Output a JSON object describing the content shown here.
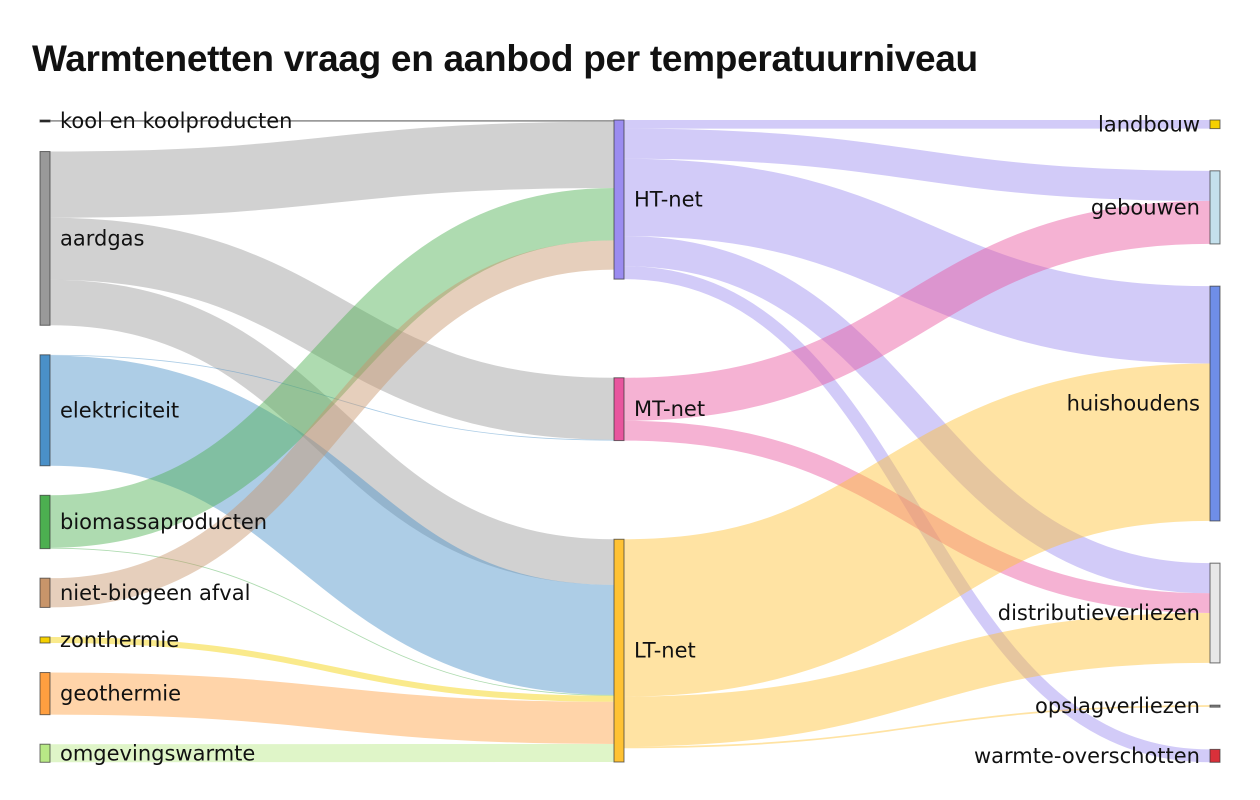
{
  "title": "Warmtenetten vraag en aanbod per temperatuurniveau",
  "chart_data": {
    "type": "sankey",
    "title": "Warmtenetten vraag en aanbod per temperatuurniveau",
    "nodes": [
      {
        "id": "kool",
        "label": "kool en koolproducten",
        "column": 0,
        "color": "#222222"
      },
      {
        "id": "aardgas",
        "label": "aardgas",
        "column": 0,
        "color": "#999999"
      },
      {
        "id": "elektriciteit",
        "label": "elektriciteit",
        "column": 0,
        "color": "#4a90c8"
      },
      {
        "id": "biomassa",
        "label": "biomassaproducten",
        "column": 0,
        "color": "#4caf50"
      },
      {
        "id": "afval",
        "label": "niet-biogeen afval",
        "column": 0,
        "color": "#c8956a"
      },
      {
        "id": "zon",
        "label": "zonthermie",
        "column": 0,
        "color": "#f5d000"
      },
      {
        "id": "geo",
        "label": "geothermie",
        "column": 0,
        "color": "#ff9f40"
      },
      {
        "id": "omgeving",
        "label": "omgevingswarmte",
        "column": 0,
        "color": "#b8e986"
      },
      {
        "id": "ht",
        "label": "HT-net",
        "column": 1,
        "color": "#9b8cf0"
      },
      {
        "id": "mt",
        "label": "MT-net",
        "column": 1,
        "color": "#e8559e"
      },
      {
        "id": "lt",
        "label": "LT-net",
        "column": 1,
        "color": "#ffc233"
      },
      {
        "id": "landbouw",
        "label": "landbouw",
        "column": 2,
        "color": "#f5d000"
      },
      {
        "id": "gebouwen",
        "label": "gebouwen",
        "column": 2,
        "color": "#c4e0ec"
      },
      {
        "id": "huishoudens",
        "label": "huishoudens",
        "column": 2,
        "color": "#6f8ee8"
      },
      {
        "id": "distributie",
        "label": "distributieverliezen",
        "column": 2,
        "color": "#e8e8e8"
      },
      {
        "id": "opslag",
        "label": "opslagverliezen",
        "column": 2,
        "color": "#888888"
      },
      {
        "id": "overschot",
        "label": "warmte-overschotten",
        "column": 2,
        "color": "#d9303a"
      }
    ],
    "links": [
      {
        "source": "kool",
        "target": "ht",
        "value": 2
      },
      {
        "source": "aardgas",
        "target": "ht",
        "value": 77
      },
      {
        "source": "aardgas",
        "target": "mt",
        "value": 72
      },
      {
        "source": "aardgas",
        "target": "lt",
        "value": 53
      },
      {
        "source": "elektriciteit",
        "target": "mt",
        "value": 1
      },
      {
        "source": "elektriciteit",
        "target": "lt",
        "value": 128
      },
      {
        "source": "biomassa",
        "target": "ht",
        "value": 61
      },
      {
        "source": "biomassa",
        "target": "lt",
        "value": 1
      },
      {
        "source": "afval",
        "target": "ht",
        "value": 34
      },
      {
        "source": "zon",
        "target": "lt",
        "value": 7
      },
      {
        "source": "geo",
        "target": "lt",
        "value": 49
      },
      {
        "source": "omgeving",
        "target": "lt",
        "value": 21
      },
      {
        "source": "ht",
        "target": "landbouw",
        "value": 10
      },
      {
        "source": "ht",
        "target": "gebouwen",
        "value": 35
      },
      {
        "source": "ht",
        "target": "huishoudens",
        "value": 90
      },
      {
        "source": "ht",
        "target": "distributie",
        "value": 35
      },
      {
        "source": "ht",
        "target": "overschot",
        "value": 15
      },
      {
        "source": "mt",
        "target": "gebouwen",
        "value": 50
      },
      {
        "source": "mt",
        "target": "distributie",
        "value": 23
      },
      {
        "source": "lt",
        "target": "huishoudens",
        "value": 183
      },
      {
        "source": "lt",
        "target": "distributie",
        "value": 58
      },
      {
        "source": "lt",
        "target": "opslag",
        "value": 2
      }
    ]
  }
}
